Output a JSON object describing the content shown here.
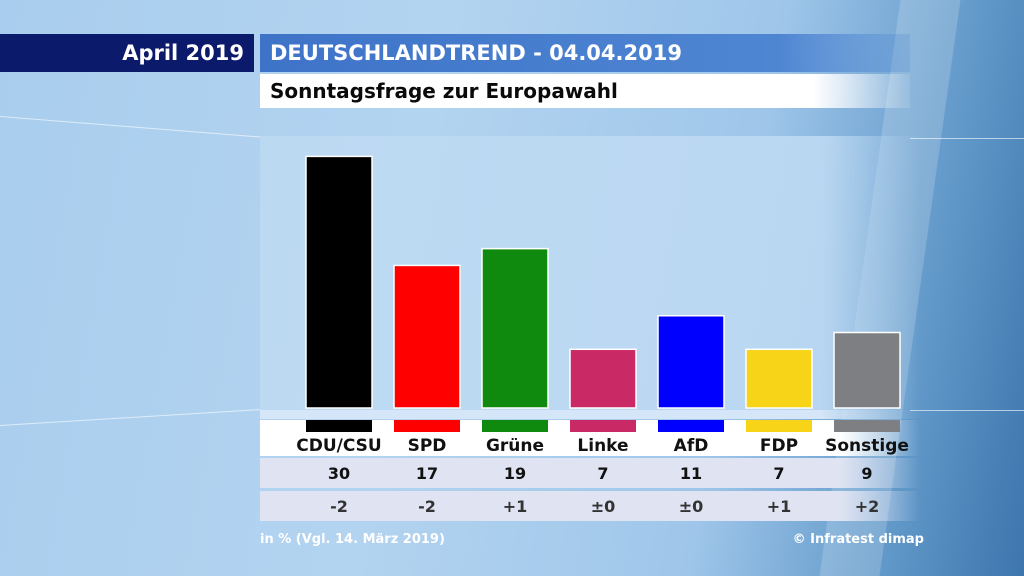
{
  "header": {
    "month": "April 2019",
    "title": "DEUTSCHLANDTREND - 04.04.2019",
    "subtitle": "Sonntagsfrage zur Europawahl"
  },
  "footer": {
    "note": "in % (Vgl. 14. März 2019)",
    "source": "© Infratest dimap"
  },
  "chart_data": {
    "type": "bar",
    "title": "Sonntagsfrage zur Europawahl",
    "categories": [
      "CDU/CSU",
      "SPD",
      "Grüne",
      "Linke",
      "AfD",
      "FDP",
      "Sonstige"
    ],
    "values": [
      30,
      17,
      19,
      7,
      11,
      7,
      9
    ],
    "changes": [
      "-2",
      "-2",
      "+1",
      "±0",
      "±0",
      "+1",
      "+2"
    ],
    "colors": [
      "#000000",
      "#ff0000",
      "#0f8a0f",
      "#c92a66",
      "#0000ff",
      "#f7d417",
      "#7d7f83"
    ],
    "unit": "%",
    "ylim": [
      0,
      31
    ],
    "grid": false,
    "legend": "none"
  }
}
